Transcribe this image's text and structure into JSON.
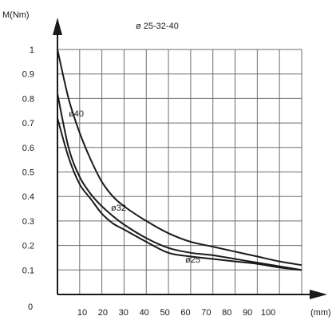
{
  "chart_data": {
    "type": "line",
    "title": "ø 25-32-40",
    "ylabel": "M(Nm)",
    "xlabel": "(mm)",
    "origin_label": "0",
    "x_ticks": [
      "10",
      "20",
      "30",
      "40",
      "50",
      "60",
      "70",
      "80",
      "90",
      "100"
    ],
    "y_ticks": [
      "0.1",
      "0.2",
      "0.3",
      "0.4",
      "0.5",
      "0.6",
      "0.7",
      "0.8",
      "0.9",
      "1"
    ],
    "xlim": [
      0,
      110
    ],
    "ylim": [
      0,
      1
    ],
    "grid": true,
    "series": [
      {
        "name": "ø40",
        "x": [
          0,
          5,
          10,
          15,
          20,
          25,
          30,
          40,
          50,
          60,
          70,
          80,
          90,
          100,
          110
        ],
        "y": [
          1.0,
          0.8,
          0.66,
          0.55,
          0.46,
          0.4,
          0.36,
          0.3,
          0.25,
          0.215,
          0.195,
          0.175,
          0.155,
          0.135,
          0.12
        ]
      },
      {
        "name": "ø32",
        "x": [
          0,
          5,
          10,
          15,
          20,
          25,
          30,
          40,
          50,
          60,
          70,
          80,
          90,
          100,
          110
        ],
        "y": [
          0.82,
          0.6,
          0.48,
          0.41,
          0.36,
          0.32,
          0.285,
          0.23,
          0.19,
          0.17,
          0.16,
          0.145,
          0.13,
          0.115,
          0.1
        ]
      },
      {
        "name": "ø25",
        "x": [
          0,
          5,
          10,
          15,
          20,
          25,
          30,
          40,
          50,
          60,
          70,
          80,
          90,
          100,
          110
        ],
        "y": [
          0.72,
          0.56,
          0.45,
          0.39,
          0.33,
          0.29,
          0.265,
          0.215,
          0.17,
          0.155,
          0.145,
          0.135,
          0.125,
          0.11,
          0.1
        ]
      }
    ]
  }
}
